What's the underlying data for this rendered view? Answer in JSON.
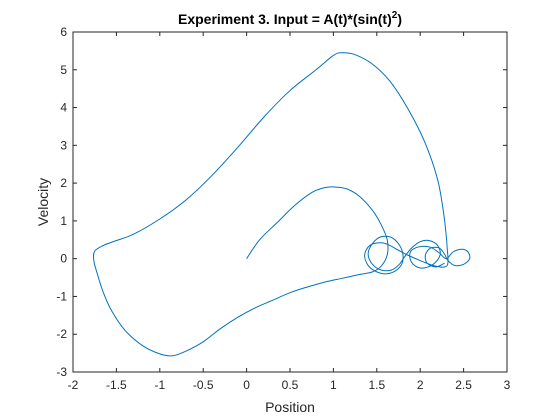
{
  "chart_data": {
    "type": "line",
    "title": "Experiment 3. Input = A(t)*(sin(t)",
    "title_superscript": "2",
    "title_suffix": ")",
    "xlabel": "Position",
    "ylabel": "Velocity",
    "xlim": [
      -2,
      3
    ],
    "ylim": [
      -3,
      6
    ],
    "xticks": [
      -2,
      -1.5,
      -1,
      -0.5,
      0,
      0.5,
      1,
      1.5,
      2,
      2.5,
      3
    ],
    "xtick_labels": [
      "-2",
      "-1.5",
      "-1",
      "-0.5",
      "0",
      "0.5",
      "1",
      "1.5",
      "2",
      "2.5",
      "3"
    ],
    "yticks": [
      -3,
      -2,
      -1,
      0,
      1,
      2,
      3,
      4,
      5,
      6
    ],
    "ytick_labels": [
      "-3",
      "-2",
      "-1",
      "0",
      "1",
      "2",
      "3",
      "4",
      "5",
      "6"
    ],
    "grid": false,
    "box": true,
    "line_color": "#0072bd",
    "axis_color": "#262626",
    "series": [
      {
        "points": [
          [
            0,
            0
          ],
          [
            0.15,
            0.5
          ],
          [
            0.35,
            0.95
          ],
          [
            0.55,
            1.4
          ],
          [
            0.75,
            1.75
          ],
          [
            0.9,
            1.88
          ],
          [
            1.0,
            1.9
          ],
          [
            1.15,
            1.85
          ],
          [
            1.3,
            1.65
          ],
          [
            1.45,
            1.28
          ],
          [
            1.55,
            0.9
          ],
          [
            1.62,
            0.5
          ],
          [
            1.62,
            0.1
          ],
          [
            1.55,
            -0.2
          ],
          [
            1.45,
            -0.35
          ],
          [
            1.3,
            -0.42
          ],
          [
            1.1,
            -0.52
          ],
          [
            0.9,
            -0.62
          ],
          [
            0.7,
            -0.75
          ],
          [
            0.5,
            -0.9
          ],
          [
            0.3,
            -1.1
          ],
          [
            0.1,
            -1.3
          ],
          [
            -0.1,
            -1.55
          ],
          [
            -0.3,
            -1.85
          ],
          [
            -0.5,
            -2.2
          ],
          [
            -0.7,
            -2.45
          ],
          [
            -0.85,
            -2.57
          ],
          [
            -1.0,
            -2.52
          ],
          [
            -1.2,
            -2.3
          ],
          [
            -1.4,
            -1.9
          ],
          [
            -1.55,
            -1.4
          ],
          [
            -1.65,
            -0.9
          ],
          [
            -1.72,
            -0.4
          ],
          [
            -1.76,
            -0.05
          ],
          [
            -1.75,
            0.2
          ],
          [
            -1.65,
            0.35
          ],
          [
            -1.5,
            0.48
          ],
          [
            -1.3,
            0.65
          ],
          [
            -1.0,
            1.05
          ],
          [
            -0.7,
            1.55
          ],
          [
            -0.4,
            2.2
          ],
          [
            -0.1,
            2.95
          ],
          [
            0.2,
            3.75
          ],
          [
            0.5,
            4.45
          ],
          [
            0.8,
            5.0
          ],
          [
            1.0,
            5.38
          ],
          [
            1.1,
            5.45
          ],
          [
            1.25,
            5.4
          ],
          [
            1.45,
            5.15
          ],
          [
            1.65,
            4.7
          ],
          [
            1.85,
            4.0
          ],
          [
            2.05,
            3.1
          ],
          [
            2.2,
            2.1
          ],
          [
            2.27,
            1.2
          ],
          [
            2.3,
            0.6
          ],
          [
            2.31,
            0.3
          ],
          [
            2.32,
            -0.1
          ],
          [
            2.28,
            -0.22
          ],
          [
            2.15,
            -0.18
          ],
          [
            2.0,
            -0.05
          ],
          [
            1.85,
            0.1
          ],
          [
            1.75,
            0.22
          ],
          [
            1.65,
            0.35
          ],
          [
            1.55,
            0.42
          ],
          [
            1.42,
            0.35
          ],
          [
            1.36,
            0.1
          ],
          [
            1.4,
            -0.18
          ],
          [
            1.5,
            -0.35
          ],
          [
            1.62,
            -0.4
          ],
          [
            1.74,
            -0.28
          ],
          [
            1.8,
            -0.05
          ],
          [
            1.78,
            0.28
          ],
          [
            1.68,
            0.55
          ],
          [
            1.55,
            0.58
          ],
          [
            1.45,
            0.4
          ],
          [
            1.4,
            0.12
          ],
          [
            1.45,
            -0.15
          ],
          [
            1.55,
            -0.3
          ],
          [
            1.67,
            -0.3
          ],
          [
            1.76,
            -0.15
          ],
          [
            1.82,
            0.05
          ],
          [
            1.9,
            0.28
          ],
          [
            2.0,
            0.45
          ],
          [
            2.1,
            0.48
          ],
          [
            2.2,
            0.35
          ],
          [
            2.23,
            0.1
          ],
          [
            2.15,
            -0.15
          ],
          [
            2.02,
            -0.25
          ],
          [
            1.92,
            -0.15
          ],
          [
            1.88,
            0.05
          ],
          [
            1.9,
            0.22
          ],
          [
            2.0,
            0.32
          ],
          [
            2.12,
            0.3
          ],
          [
            2.22,
            0.15
          ],
          [
            2.3,
            0.0
          ],
          [
            2.38,
            0.18
          ],
          [
            2.48,
            0.25
          ],
          [
            2.55,
            0.18
          ],
          [
            2.57,
            0.0
          ],
          [
            2.5,
            -0.15
          ],
          [
            2.4,
            -0.18
          ],
          [
            2.32,
            -0.05
          ],
          [
            2.28,
            0.12
          ],
          [
            2.22,
            0.28
          ],
          [
            2.12,
            0.28
          ],
          [
            2.06,
            0.1
          ],
          [
            2.08,
            -0.12
          ],
          [
            2.18,
            -0.22
          ],
          [
            2.28,
            -0.12
          ]
        ]
      }
    ]
  }
}
